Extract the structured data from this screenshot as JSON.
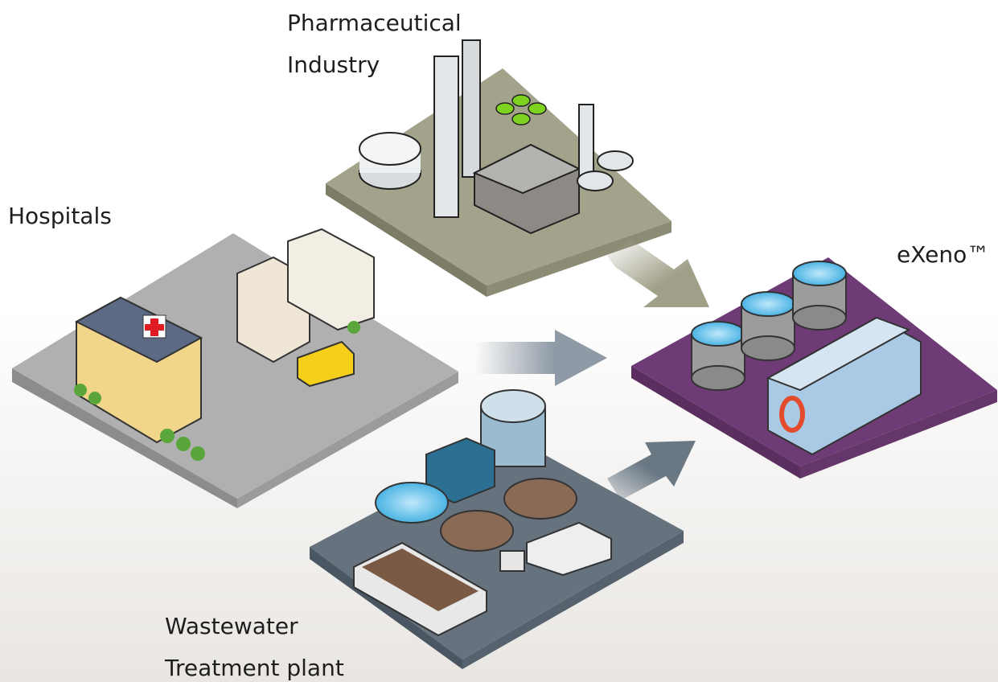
{
  "nodes": [
    {
      "lines": [
        "Pharmaceutical",
        "Industry"
      ]
    },
    {
      "lines": [
        "Hospitals"
      ]
    },
    {
      "lines": [
        "eXeno™"
      ]
    },
    {
      "lines": [
        "Wastewater",
        "Treatment plant"
      ]
    }
  ]
}
